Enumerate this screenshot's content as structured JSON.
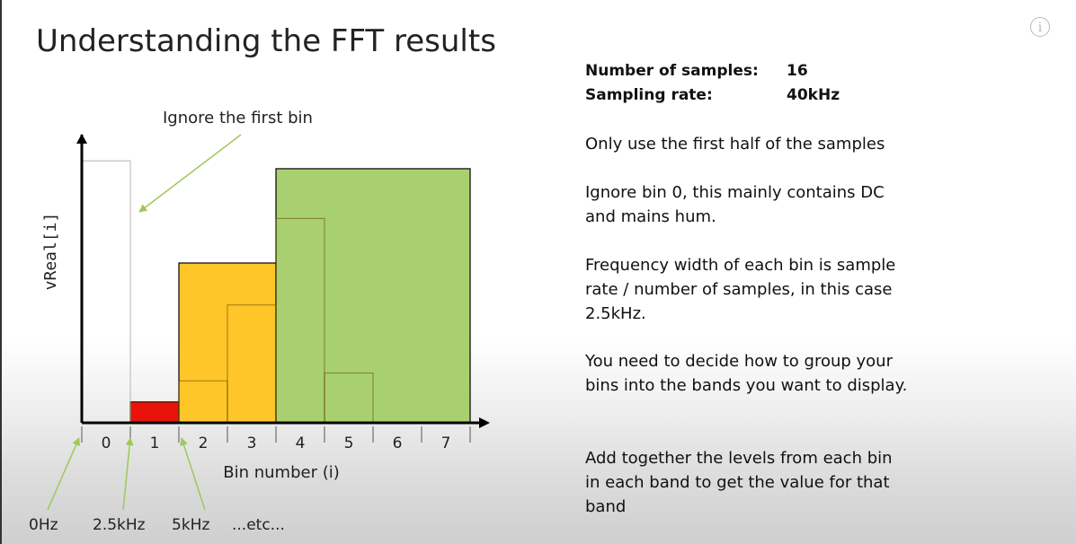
{
  "slide": {
    "title": "Understanding the FFT results",
    "stats": [
      {
        "label": "Number of samples:",
        "value": "16"
      },
      {
        "label": "Sampling rate:",
        "value": "40kHz"
      }
    ],
    "notes": [
      "Only use the first half of the samples",
      "Ignore bin 0, this mainly contains DC and mains hum.",
      "Frequency width of each bin is sample rate / number of samples, in this case 2.5kHz.",
      "You need to decide how to group your bins into the bands you want to display.",
      "Add together the levels from each bin in each band to get the value for that band"
    ]
  },
  "chart_data": {
    "type": "bar",
    "ylabel": "vReal[i]",
    "xlabel": "Bin number (i)",
    "categories": [
      "0",
      "1",
      "2",
      "3",
      "4",
      "5",
      "6",
      "7"
    ],
    "values": [
      100,
      8,
      16,
      45,
      78,
      19,
      0,
      0
    ],
    "ylim": [
      0,
      110
    ],
    "bands": [
      {
        "bins": [
          1
        ],
        "value": 8,
        "color": "#e8140c"
      },
      {
        "bins": [
          2,
          3
        ],
        "value": 61,
        "color": "#ffc62a"
      },
      {
        "bins": [
          4,
          5,
          6,
          7
        ],
        "value": 97,
        "color": "#a8d070"
      }
    ],
    "annotations": {
      "ignore_label": "Ignore the first bin",
      "freq_labels": [
        "0Hz",
        "2.5kHz",
        "5kHz",
        "...etc..."
      ]
    },
    "colors": {
      "axis": "#000000",
      "bin_outline": "#c0c0c0",
      "arrow": "#9fc857"
    }
  }
}
